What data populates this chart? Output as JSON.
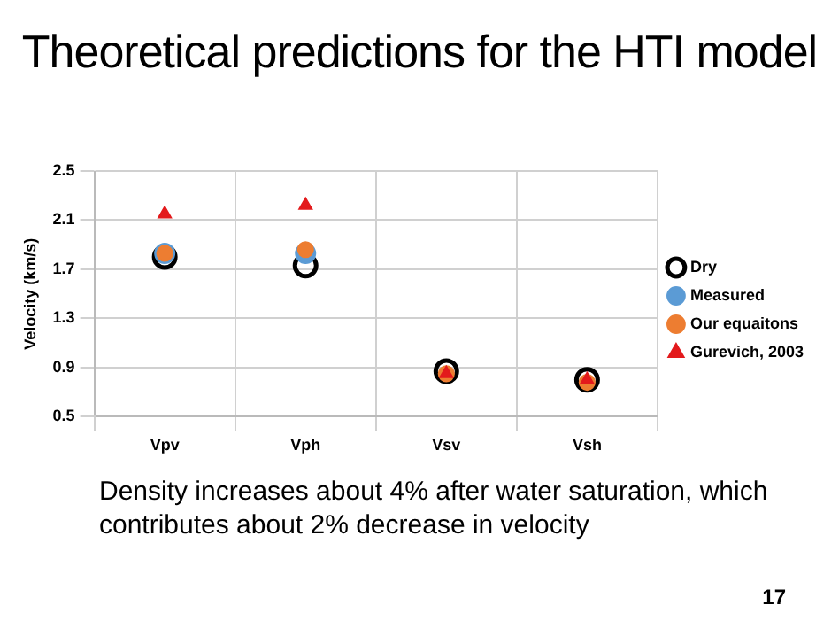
{
  "chart_data": {
    "type": "scatter",
    "title": "Theoretical predictions for the HTI model",
    "ylabel": "Velocity (km/s)",
    "categories": [
      "Vpv",
      "Vph",
      "Vsv",
      "Vsh"
    ],
    "series": [
      {
        "name": "Dry",
        "color": "#000000",
        "marker": "circle",
        "values": [
          1.8,
          1.73,
          0.87,
          0.8
        ]
      },
      {
        "name": "Measured",
        "color": "#5b9bd5",
        "marker": "circle",
        "values": [
          1.83,
          1.83,
          null,
          null
        ]
      },
      {
        "name": "Our equaitons",
        "color": "#ed7d31",
        "marker": "circle",
        "values": [
          1.83,
          1.86,
          0.85,
          0.78
        ]
      },
      {
        "name": "Gurevich, 2003",
        "color": "#e31a1c",
        "marker": "triangle",
        "values": [
          2.15,
          2.22,
          0.85,
          0.8
        ]
      }
    ],
    "ylim": [
      0.5,
      2.5
    ],
    "yticks": [
      0.5,
      0.9,
      1.3,
      1.7,
      2.1,
      2.5
    ],
    "grid": true,
    "legend": "right",
    "annotations": [
      "Density increases about 4% after water saturation, which contributes about 2% decrease in velocity",
      "17"
    ]
  }
}
